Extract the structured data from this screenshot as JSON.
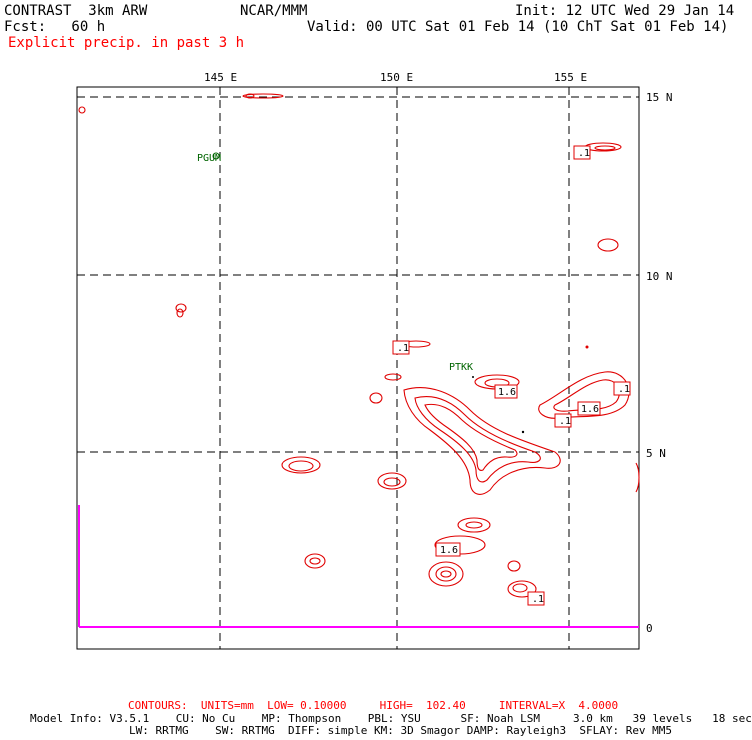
{
  "header": {
    "model_name": "CONTRAST  3km ARW",
    "organization": "NCAR/MMM",
    "init_time": "Init: 12 UTC Wed 29 Jan 14",
    "forecast_hour": "Fcst:   60 h",
    "valid_time": "Valid: 00 UTC Sat 01 Feb 14 (10 ChT Sat 01 Feb 14)",
    "field_title": "Explicit precip. in past 3 h"
  },
  "map": {
    "longitude_labels": [
      "145 E",
      "150 E",
      "155 E"
    ],
    "latitude_labels": [
      "15 N",
      "10 N",
      "5 N",
      "0"
    ],
    "stations": [
      "PGUM",
      "PTKK"
    ],
    "contour_labels": [
      ".1",
      ".1",
      "1.6",
      "1.6",
      ".1",
      ".1",
      "1.6",
      ".1"
    ],
    "colors": {
      "contour": "#e00000",
      "frame": "#000000",
      "station": "#006400",
      "boundary": "#ff00ff"
    }
  },
  "footer": {
    "contours_line": "CONTOURS:  UNITS=mm  LOW= 0.10000     HIGH=  102.40     INTERVAL=X  4.0000",
    "model_info_line1": "Model Info: V3.5.1    CU: No Cu    MP: Thompson    PBL: YSU      SF: Noah LSM     3.0 km   39 levels   18 sec",
    "model_info_line2": "LW: RRTMG    SW: RRTMG  DIFF: simple KM: 3D Smagor DAMP: Rayleigh3  SFLAY: Rev MM5"
  }
}
